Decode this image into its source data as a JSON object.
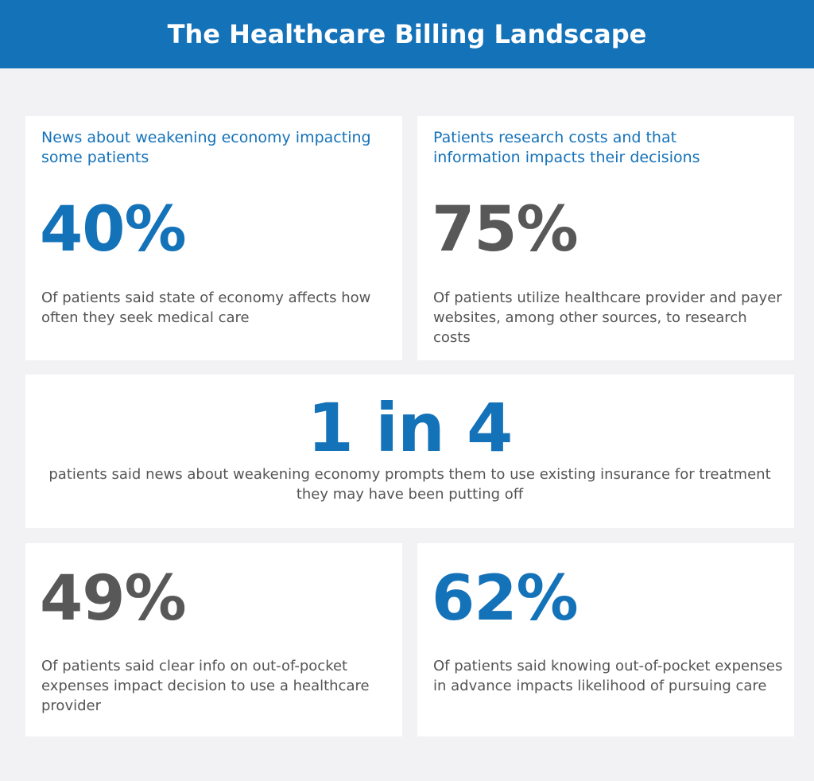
{
  "header": {
    "title": "The Healthcare Billing Landscape"
  },
  "cards": {
    "economy_impact": {
      "subtitle": "News about weakening economy impacting some patients",
      "stat": "40%",
      "description": "Of patients said state of economy affects how often they seek medical care"
    },
    "research_costs": {
      "subtitle": "Patients research costs and that information impacts their decisions",
      "stat": "75%",
      "description": "Of patients utilize healthcare provider and payer websites, among other sources, to research costs"
    },
    "insurance_use": {
      "stat": "1 in 4",
      "description": "patients said news about weakening economy prompts them to use existing insurance for treatment they may have been putting off"
    },
    "clear_info": {
      "stat": "49%",
      "description": "Of patients said clear info on out-of-pocket expenses impact decision to use a healthcare provider"
    },
    "advance_knowledge": {
      "stat": "62%",
      "description": "Of patients said knowing out-of-pocket expenses in advance impacts likelihood of pursuing care"
    }
  },
  "colors": {
    "brand_blue": "#1472b9",
    "stat_gray": "#585858",
    "text_gray": "#555555",
    "background": "#f2f2f4"
  }
}
